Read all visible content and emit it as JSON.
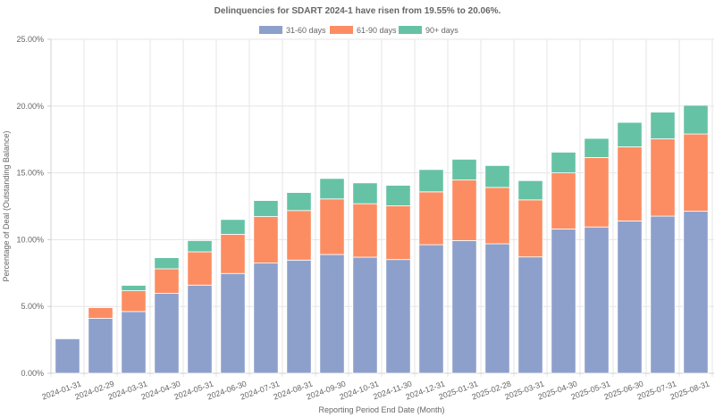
{
  "chart_data": {
    "type": "bar",
    "stacked": true,
    "title": "Delinquencies for SDART 2024-1 have risen from 19.55% to 20.06%.",
    "xlabel": "Reporting Period End Date (Month)",
    "ylabel": "Percentage of Deal (Outstanding Balance)",
    "ylim": [
      0,
      25
    ],
    "yticks": [
      "0.00%",
      "5.00%",
      "10.00%",
      "15.00%",
      "20.00%",
      "25.00%"
    ],
    "ytick_values": [
      0,
      5,
      10,
      15,
      20,
      25
    ],
    "grid": true,
    "legend_position": "top-center",
    "categories": [
      "2024-01-31",
      "2024-02-29",
      "2024-03-31",
      "2024-04-30",
      "2024-05-31",
      "2024-06-30",
      "2024-07-31",
      "2024-08-31",
      "2024-09-30",
      "2024-10-31",
      "2024-11-30",
      "2024-12-31",
      "2025-01-31",
      "2025-02-28",
      "2025-03-31",
      "2025-04-30",
      "2025-05-31",
      "2025-06-30",
      "2025-07-31",
      "2025-08-31"
    ],
    "series": [
      {
        "name": "31-60 days",
        "color": "#8da0cb",
        "values": [
          2.58,
          4.11,
          4.62,
          5.98,
          6.6,
          7.47,
          8.25,
          8.47,
          8.89,
          8.69,
          8.51,
          9.62,
          9.93,
          9.69,
          8.71,
          10.8,
          10.95,
          11.4,
          11.76,
          12.13
        ]
      },
      {
        "name": "61-90 days",
        "color": "#fc8d62",
        "values": [
          0.0,
          0.8,
          1.56,
          1.84,
          2.49,
          2.93,
          3.48,
          3.71,
          4.16,
          4.0,
          4.02,
          3.96,
          4.54,
          4.22,
          4.27,
          4.2,
          5.2,
          5.55,
          5.79,
          5.78
        ]
      },
      {
        "name": "90+ days",
        "color": "#66c2a5",
        "values": [
          0.0,
          0.0,
          0.4,
          0.83,
          0.84,
          1.11,
          1.2,
          1.35,
          1.53,
          1.56,
          1.54,
          1.67,
          1.55,
          1.64,
          1.44,
          1.55,
          1.43,
          1.83,
          2.0,
          2.15
        ]
      }
    ]
  }
}
